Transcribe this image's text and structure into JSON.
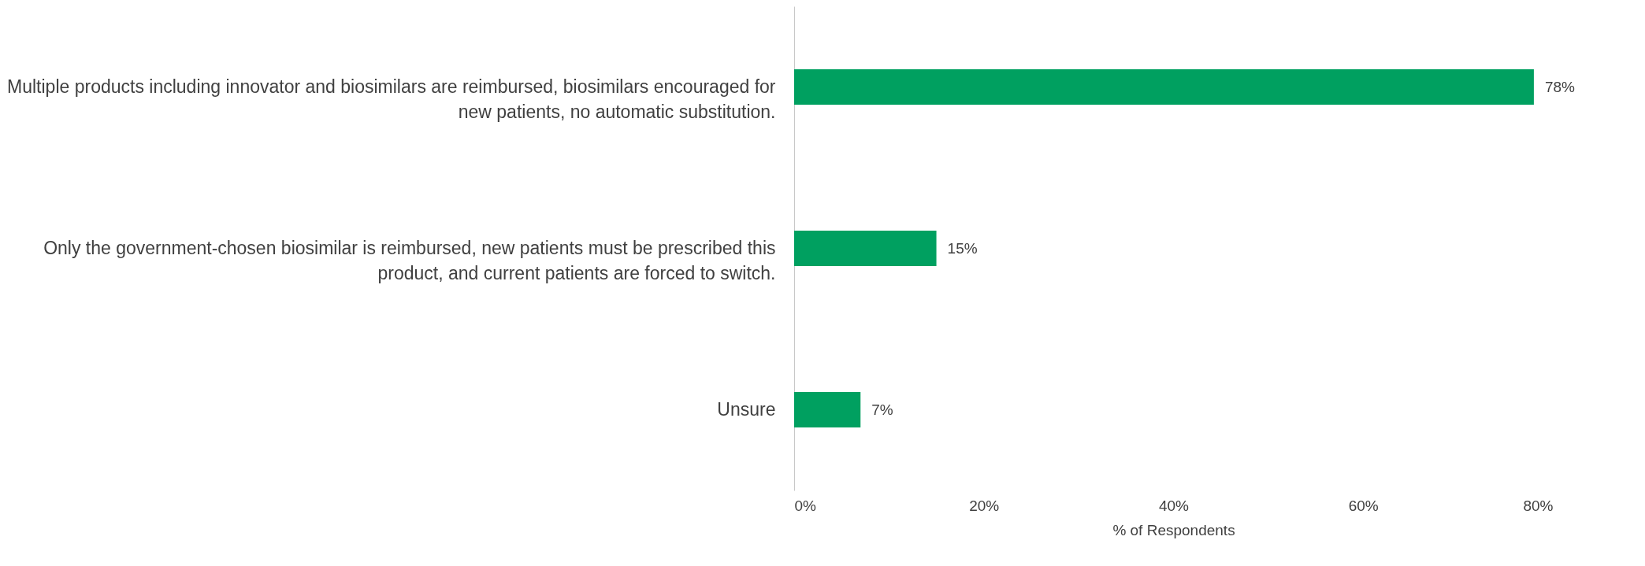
{
  "chart_data": {
    "type": "bar",
    "orientation": "horizontal",
    "xlabel": "% of Respondents",
    "categories": [
      "Multiple products including innovator and biosimilars are reimbursed, biosimilars encouraged for new patients, no automatic substitution.",
      "Only the government-chosen biosimilar is reimbursed, new patients must be prescribed this product, and current patients are forced to switch.",
      "Unsure"
    ],
    "values": [
      78,
      15,
      7
    ],
    "value_labels": [
      "78%",
      "15%",
      "7%"
    ],
    "color": "#00a060",
    "xlim": [
      0,
      80
    ],
    "xticks": [
      {
        "value": 0,
        "label": "0%"
      },
      {
        "value": 20,
        "label": "20%"
      },
      {
        "value": 40,
        "label": "40%"
      },
      {
        "value": 60,
        "label": "60%"
      },
      {
        "value": 80,
        "label": "80%"
      }
    ],
    "grid": false
  }
}
